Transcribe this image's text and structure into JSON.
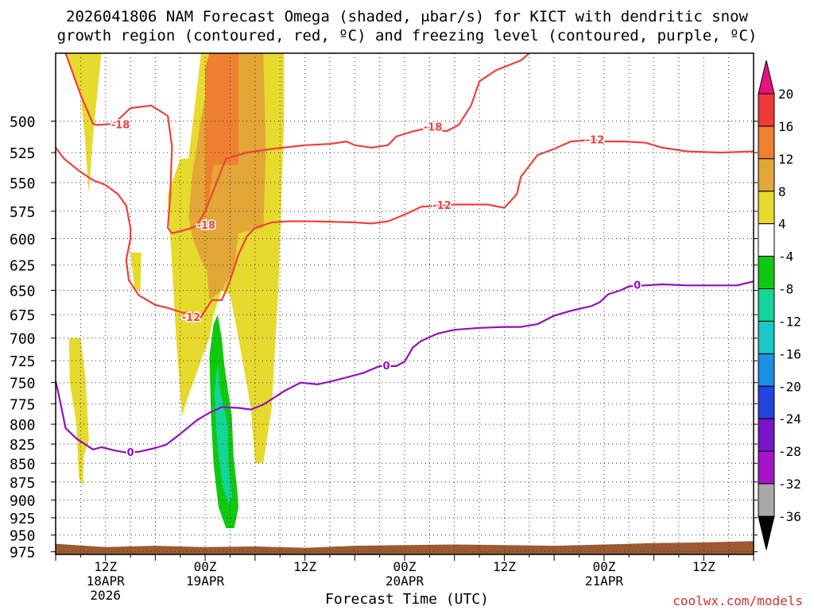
{
  "title_line1": "2026041806 NAM Forecast Omega (shaded, μbar/s) for KICT with dendritic snow",
  "title_line2": "growth region (contoured, red, ºC) and freezing level (contoured, purple, ºC)",
  "credit": "coolwx.com/models",
  "chart_data": {
    "type": "heatmap",
    "xlabel": "Forecast Time (UTC)",
    "ylabel": "",
    "x_units": "forecast hour",
    "xlim": [
      0,
      84
    ],
    "ylim": [
      975,
      450
    ],
    "y_ticks": [
      500,
      525,
      550,
      575,
      600,
      625,
      650,
      675,
      700,
      725,
      750,
      775,
      800,
      825,
      850,
      875,
      900,
      925,
      950,
      975
    ],
    "x_ticks": [
      {
        "hour": 6,
        "labels": [
          "12Z",
          "18APR",
          "2026"
        ]
      },
      {
        "hour": 18,
        "labels": [
          "00Z",
          "19APR"
        ]
      },
      {
        "hour": 30,
        "labels": [
          "12Z"
        ]
      },
      {
        "hour": 42,
        "labels": [
          "00Z",
          "20APR"
        ]
      },
      {
        "hour": 54,
        "labels": [
          "12Z"
        ]
      },
      {
        "hour": 66,
        "labels": [
          "00Z",
          "21APR"
        ]
      },
      {
        "hour": 78,
        "labels": [
          "12Z"
        ]
      }
    ],
    "colorbar": {
      "labels": [
        "20",
        "16",
        "12",
        "8",
        "4",
        "-4",
        "-8",
        "-12",
        "-16",
        "-20",
        "-24",
        "-28",
        "-32",
        "-36"
      ],
      "bins": [
        {
          "min": 20,
          "max": 999,
          "color": "#e8117f"
        },
        {
          "min": 16,
          "max": 20,
          "color": "#f0393b"
        },
        {
          "min": 12,
          "max": 16,
          "color": "#ee8030"
        },
        {
          "min": 8,
          "max": 12,
          "color": "#e2a736"
        },
        {
          "min": 4,
          "max": 8,
          "color": "#e7da2e"
        },
        {
          "min": -4,
          "max": 4,
          "color": "#ffffff"
        },
        {
          "min": -8,
          "max": -4,
          "color": "#11c811"
        },
        {
          "min": -12,
          "max": -8,
          "color": "#13d59a"
        },
        {
          "min": -16,
          "max": -12,
          "color": "#1ac8c8"
        },
        {
          "min": -20,
          "max": -16,
          "color": "#1b8ee5"
        },
        {
          "min": -24,
          "max": -20,
          "color": "#2244dd"
        },
        {
          "min": -28,
          "max": -24,
          "color": "#7a14c8"
        },
        {
          "min": -32,
          "max": -28,
          "color": "#a414c8"
        },
        {
          "min": -36,
          "max": -32,
          "color": "#a9a9a9"
        },
        {
          "min": -999,
          "max": -36,
          "color": "#000000"
        }
      ]
    },
    "omega_regions": [
      {
        "value": 4,
        "color": "#e7da2e",
        "points": [
          [
            1.2,
            450
          ],
          [
            5.5,
            450
          ],
          [
            4.5,
            512
          ],
          [
            4.0,
            560
          ],
          [
            3.5,
            512
          ],
          [
            3.0,
            480
          ]
        ]
      },
      {
        "value": 4,
        "color": "#e7da2e",
        "points": [
          [
            9.0,
            613
          ],
          [
            10.3,
            613
          ],
          [
            10.2,
            650
          ],
          [
            9.5,
            650
          ]
        ]
      },
      {
        "value": 4,
        "color": "#e7da2e",
        "points": [
          [
            1.6,
            700
          ],
          [
            3.0,
            700
          ],
          [
            3.6,
            745
          ],
          [
            4.0,
            820
          ],
          [
            3.4,
            840
          ],
          [
            3.3,
            880
          ],
          [
            2.8,
            870
          ],
          [
            2.5,
            800
          ],
          [
            1.7,
            750
          ]
        ]
      },
      {
        "value": 4,
        "color": "#e7da2e",
        "points": [
          [
            17.5,
            450
          ],
          [
            27.5,
            450
          ],
          [
            27.5,
            500
          ],
          [
            26.8,
            650
          ],
          [
            26.0,
            780
          ],
          [
            25.0,
            850
          ],
          [
            24.0,
            850
          ],
          [
            23.5,
            780
          ],
          [
            22.0,
            700
          ],
          [
            21.0,
            655
          ],
          [
            20.0,
            650
          ],
          [
            19.0,
            675
          ],
          [
            18.5,
            700
          ],
          [
            17.5,
            725
          ],
          [
            16.0,
            765
          ],
          [
            15.2,
            790
          ],
          [
            14.5,
            700
          ],
          [
            13.5,
            560
          ],
          [
            15.0,
            530
          ],
          [
            16.0,
            530
          ]
        ]
      },
      {
        "value": 8,
        "color": "#e2a736",
        "points": [
          [
            17.0,
            520
          ],
          [
            17.3,
            505
          ],
          [
            19.0,
            450
          ],
          [
            25.0,
            450
          ],
          [
            25.3,
            525
          ],
          [
            25.0,
            590
          ],
          [
            22.0,
            595
          ],
          [
            21.5,
            630
          ],
          [
            20.0,
            650
          ],
          [
            18.5,
            660
          ],
          [
            18.2,
            630
          ],
          [
            17.5,
            620
          ],
          [
            16.5,
            600
          ],
          [
            16.0,
            580
          ],
          [
            16.5,
            540
          ]
        ]
      },
      {
        "value": 12,
        "color": "#ee8030",
        "points": [
          [
            18.0,
            460
          ],
          [
            18.5,
            450
          ],
          [
            22.0,
            450
          ],
          [
            22.0,
            535
          ],
          [
            19.0,
            535
          ],
          [
            18.5,
            560
          ],
          [
            18.0,
            580
          ]
        ]
      },
      {
        "value": -4,
        "color": "#11c811",
        "points": [
          [
            18.5,
            720
          ],
          [
            19.0,
            685
          ],
          [
            19.5,
            675
          ],
          [
            20.0,
            700
          ],
          [
            20.3,
            730
          ],
          [
            21.2,
            790
          ],
          [
            21.4,
            840
          ],
          [
            21.8,
            880
          ],
          [
            22.0,
            910
          ],
          [
            21.5,
            940
          ],
          [
            20.5,
            940
          ],
          [
            19.6,
            910
          ],
          [
            19.3,
            880
          ],
          [
            19.0,
            850
          ],
          [
            18.7,
            790
          ]
        ]
      },
      {
        "value": -8,
        "color": "#13d59a",
        "points": [
          [
            19.1,
            760
          ],
          [
            19.5,
            730
          ],
          [
            19.8,
            760
          ],
          [
            20.7,
            800
          ],
          [
            20.8,
            850
          ],
          [
            21.2,
            895
          ],
          [
            20.8,
            905
          ],
          [
            20.1,
            880
          ],
          [
            19.6,
            840
          ],
          [
            19.3,
            800
          ]
        ]
      }
    ],
    "ground_profile": [
      [
        0,
        963
      ],
      [
        6,
        968
      ],
      [
        12,
        966
      ],
      [
        18,
        968
      ],
      [
        24,
        967
      ],
      [
        30,
        969
      ],
      [
        36,
        966
      ],
      [
        42,
        965
      ],
      [
        48,
        964
      ],
      [
        54,
        965
      ],
      [
        60,
        966
      ],
      [
        66,
        964
      ],
      [
        72,
        962
      ],
      [
        78,
        961
      ],
      [
        84,
        959
      ]
    ],
    "contours": [
      {
        "level": -18,
        "color": "#f04040",
        "points": [
          [
            1.2,
            450
          ],
          [
            3.0,
            480
          ],
          [
            4.5,
            502
          ],
          [
            5.0,
            503
          ],
          [
            7.0,
            502
          ],
          [
            9.0,
            490
          ],
          [
            11.5,
            488
          ],
          [
            13.5,
            496
          ],
          [
            14.0,
            520
          ],
          [
            13.8,
            560
          ],
          [
            13.5,
            590
          ],
          [
            14.0,
            595
          ],
          [
            16.0,
            591
          ],
          [
            17.0,
            588
          ],
          [
            18.0,
            575
          ],
          [
            20.5,
            530
          ],
          [
            23.0,
            525
          ],
          [
            26.0,
            522
          ],
          [
            30.0,
            519
          ],
          [
            33.0,
            518
          ],
          [
            35.0,
            516
          ],
          [
            36.0,
            519
          ],
          [
            38.0,
            521
          ],
          [
            40.0,
            519
          ],
          [
            41.0,
            512
          ],
          [
            43.0,
            508
          ],
          [
            45.0,
            505
          ],
          [
            47.0,
            508
          ],
          [
            48.5,
            503
          ],
          [
            50.0,
            488
          ],
          [
            51.0,
            470
          ],
          [
            53.0,
            462
          ],
          [
            56.0,
            455
          ],
          [
            57.0,
            450
          ]
        ],
        "labels": [
          {
            "text": "-18",
            "x": 7.8,
            "y": 503
          },
          {
            "text": "-18",
            "x": 45.4,
            "y": 505
          },
          {
            "text": "-18",
            "x": 18.1,
            "y": 588
          }
        ]
      },
      {
        "level": -12,
        "color": "#f04040",
        "points": [
          [
            0,
            521
          ],
          [
            1.0,
            530
          ],
          [
            2.8,
            540
          ],
          [
            4.5,
            548
          ],
          [
            6.0,
            552
          ],
          [
            7.5,
            560
          ],
          [
            8.5,
            570
          ],
          [
            9.0,
            590
          ],
          [
            9.0,
            600
          ],
          [
            8.5,
            620
          ],
          [
            8.8,
            640
          ],
          [
            10.0,
            655
          ],
          [
            12.0,
            665
          ],
          [
            13.5,
            668
          ],
          [
            15.3,
            673
          ],
          [
            16.5,
            673
          ],
          [
            17.3,
            680
          ],
          [
            18.8,
            660
          ],
          [
            20.0,
            660
          ],
          [
            21.0,
            640
          ],
          [
            22.0,
            615
          ],
          [
            23.0,
            598
          ],
          [
            24.0,
            590
          ],
          [
            26.0,
            585
          ],
          [
            28.0,
            584
          ],
          [
            31.0,
            584
          ],
          [
            36.0,
            585
          ],
          [
            38.0,
            586
          ],
          [
            40.0,
            584
          ],
          [
            42.0,
            578
          ],
          [
            44.0,
            571
          ],
          [
            48.0,
            569
          ],
          [
            52.0,
            569
          ],
          [
            54.0,
            572
          ],
          [
            55.5,
            560
          ],
          [
            56.0,
            545
          ],
          [
            58.0,
            527
          ],
          [
            60.0,
            522
          ],
          [
            62.0,
            516
          ],
          [
            64.0,
            515
          ],
          [
            66.0,
            516
          ],
          [
            68.5,
            516
          ],
          [
            71.0,
            517
          ],
          [
            73.0,
            521
          ],
          [
            76.0,
            524
          ],
          [
            80.0,
            525
          ],
          [
            84.0,
            524
          ]
        ],
        "labels": [
          {
            "text": "-12",
            "x": 46.5,
            "y": 570
          },
          {
            "text": "-12",
            "x": 64.9,
            "y": 515
          },
          {
            "text": "-12",
            "x": 16.3,
            "y": 678
          }
        ]
      },
      {
        "level": 0,
        "color": "#9010c0",
        "points": [
          [
            0,
            748
          ],
          [
            0.5,
            770
          ],
          [
            1.2,
            805
          ],
          [
            2.5,
            818
          ],
          [
            4.5,
            832
          ],
          [
            5.5,
            829
          ],
          [
            7.0,
            833
          ],
          [
            8.5,
            836
          ],
          [
            10.0,
            835
          ],
          [
            12.0,
            830
          ],
          [
            13.3,
            826
          ],
          [
            15.0,
            812
          ],
          [
            17.0,
            795
          ],
          [
            18.5,
            786
          ],
          [
            20.0,
            779
          ],
          [
            22.0,
            780
          ],
          [
            23.5,
            782
          ],
          [
            25.0,
            776
          ],
          [
            27.5,
            760
          ],
          [
            29.5,
            750
          ],
          [
            31.5,
            752
          ],
          [
            33.0,
            749
          ],
          [
            35.0,
            744
          ],
          [
            37.0,
            739
          ],
          [
            39.0,
            731
          ],
          [
            41.0,
            731
          ],
          [
            42.0,
            726
          ],
          [
            43.0,
            710
          ],
          [
            44.0,
            703
          ],
          [
            46.0,
            695
          ],
          [
            48.0,
            691
          ],
          [
            51.0,
            689
          ],
          [
            54.0,
            688
          ],
          [
            56.0,
            688
          ],
          [
            58.0,
            685
          ],
          [
            60.0,
            676
          ],
          [
            62.0,
            671
          ],
          [
            64.5,
            666
          ],
          [
            65.5,
            662
          ],
          [
            66.5,
            654
          ],
          [
            68.0,
            650
          ],
          [
            69.0,
            646
          ],
          [
            71.0,
            645
          ],
          [
            73.0,
            644
          ],
          [
            76.0,
            645
          ],
          [
            80.0,
            645
          ],
          [
            82.0,
            645
          ],
          [
            84.0,
            641
          ]
        ],
        "labels": [
          {
            "text": "0",
            "x": 9.0,
            "y": 836
          },
          {
            "text": "0",
            "x": 39.8,
            "y": 731
          },
          {
            "text": "0",
            "x": 70.0,
            "y": 645
          }
        ]
      }
    ]
  }
}
